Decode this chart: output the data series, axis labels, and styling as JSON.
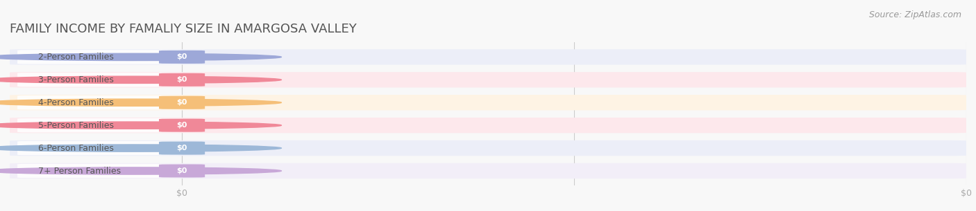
{
  "title": "FAMILY INCOME BY FAMALIY SIZE IN AMARGOSA VALLEY",
  "source_text": "Source: ZipAtlas.com",
  "categories": [
    "2-Person Families",
    "3-Person Families",
    "4-Person Families",
    "5-Person Families",
    "6-Person Families",
    "7+ Person Families"
  ],
  "values": [
    0,
    0,
    0,
    0,
    0,
    0
  ],
  "bar_colors": [
    "#9da8d8",
    "#f08898",
    "#f5bf78",
    "#f08898",
    "#9db8d8",
    "#c8a8d8"
  ],
  "bar_bg_colors": [
    "#eceef8",
    "#fde8ec",
    "#fef3e4",
    "#fde8ec",
    "#eceef8",
    "#f2eef8"
  ],
  "dot_colors": [
    "#9da8d8",
    "#f08898",
    "#f5bf78",
    "#f08898",
    "#9db8d8",
    "#c8a8d8"
  ],
  "value_label": "$0",
  "x_tick_labels": [
    "$0",
    "$0"
  ],
  "x_tick_positions": [
    0.0,
    1.0
  ],
  "xlim": [
    0,
    1
  ],
  "background_color": "#f8f8f8",
  "title_color": "#555555",
  "label_color": "#555555",
  "tick_color": "#aaaaaa",
  "grid_color": "#cccccc",
  "title_fontsize": 13,
  "label_fontsize": 9,
  "source_fontsize": 9,
  "bar_height": 0.68,
  "n_bars": 6
}
